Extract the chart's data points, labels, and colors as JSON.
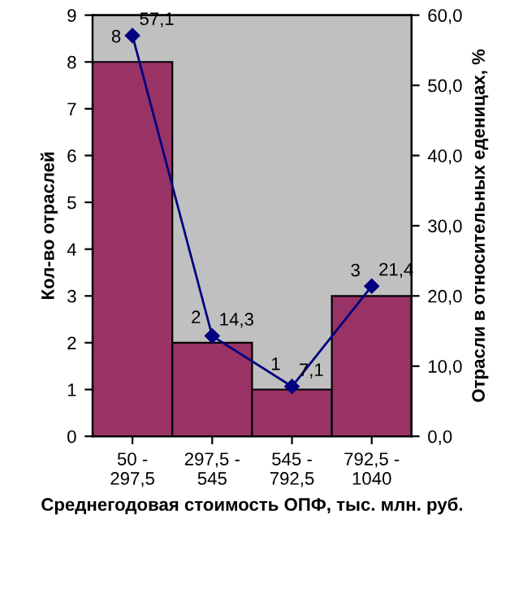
{
  "chart_data": {
    "type": "bar",
    "xlabel": "Среднегодовая стоимость ОПФ, тыс. млн. руб.",
    "ylabel": "Кол-во отраслей",
    "y2label": "Отрасли в относительных еденицах, %",
    "categories": [
      "50 - 297,5",
      "297,5 - 545",
      "545 - 792,5",
      "792,5 - 1040"
    ],
    "series": [
      {
        "color": "#993366",
        "values": [
          8,
          2,
          1,
          3
        ],
        "value_labels": [
          "8",
          "2",
          "1",
          "3"
        ]
      },
      {
        "type": "line",
        "axis": "y2",
        "color": "#000080",
        "marker": "diamond",
        "values": [
          57.1,
          14.3,
          7.1,
          21.4
        ],
        "value_labels": [
          "57,1",
          "14,3",
          "7,1",
          "21,4"
        ]
      }
    ],
    "ylim": [
      0,
      9
    ],
    "yticks": [
      0,
      1,
      2,
      3,
      4,
      5,
      6,
      7,
      8,
      9
    ],
    "y2lim": [
      0,
      60
    ],
    "y2ticks": [
      {
        "value": 0,
        "label": "0,0"
      },
      {
        "value": 10,
        "label": "10,0"
      },
      {
        "value": 20,
        "label": "20,0"
      },
      {
        "value": 30,
        "label": "30,0"
      },
      {
        "value": 40,
        "label": "40,0"
      },
      {
        "value": 50,
        "label": "50,0"
      },
      {
        "value": 60,
        "label": "60,0"
      }
    ],
    "grid": false,
    "legend": false
  }
}
